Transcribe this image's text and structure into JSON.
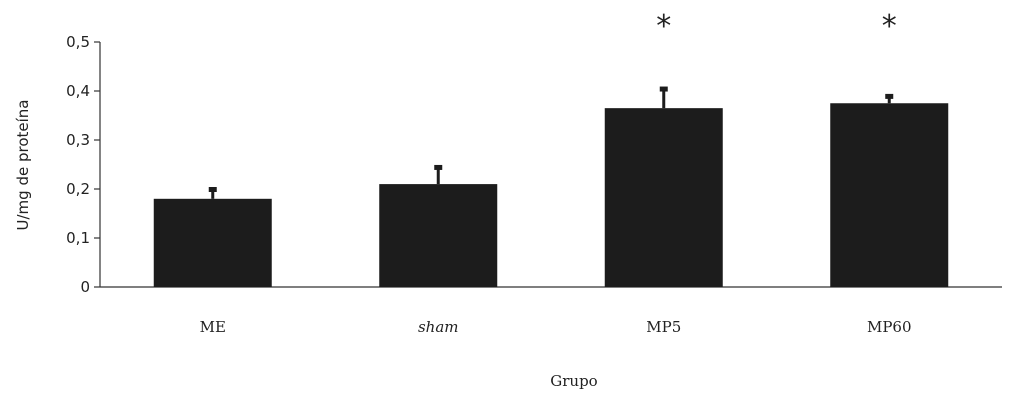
{
  "chart_data": {
    "type": "bar",
    "title": "",
    "xlabel": "Grupo",
    "ylabel": "U/mg de proteína",
    "categories": [
      "ME",
      "sham",
      "MP5",
      "MP60"
    ],
    "italic_categories": [
      "sham"
    ],
    "values": [
      0.18,
      0.21,
      0.365,
      0.375
    ],
    "error": [
      0.02,
      0.035,
      0.04,
      0.015
    ],
    "annotations": [
      "",
      "",
      "*",
      "*"
    ],
    "ylim": [
      0,
      0.5
    ],
    "yticks": [
      0,
      0.1,
      0.2,
      0.3,
      0.4,
      0.5
    ],
    "ytick_labels": [
      "0",
      "0,1",
      "0,2",
      "0,3",
      "0,4",
      "0,5"
    ],
    "grid": false,
    "legend": "none",
    "bar_color": "#1c1c1c",
    "axis_color": "#333333"
  }
}
